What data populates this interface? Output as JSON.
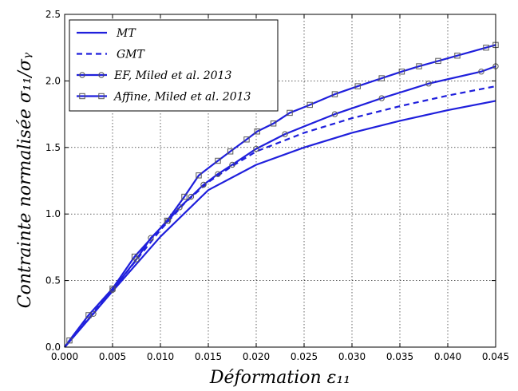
{
  "chart_data": {
    "type": "line",
    "xlabel": "Déformation ε₁₁",
    "ylabel": "Contrainte normalisée σ₁₁/σᵧ",
    "xlim": [
      0.0,
      0.045
    ],
    "ylim": [
      0.0,
      2.5
    ],
    "xticks": [
      0.0,
      0.005,
      0.01,
      0.015,
      0.02,
      0.025,
      0.03,
      0.035,
      0.04,
      0.045
    ],
    "xtick_labels": [
      "0.000",
      "0.005",
      "0.010",
      "0.015",
      "0.020",
      "0.025",
      "0.030",
      "0.035",
      "0.040",
      "0.045"
    ],
    "yticks": [
      0.0,
      0.5,
      1.0,
      1.5,
      2.0,
      2.5
    ],
    "ytick_labels": [
      "0.0",
      "0.5",
      "1.0",
      "1.5",
      "2.0",
      "2.5"
    ],
    "grid": true,
    "legend_position": "top-left",
    "series_color": "#1f1fdc",
    "series": [
      {
        "name": "MT",
        "style": "solid",
        "marker": "none",
        "x": [
          0.0,
          0.005,
          0.01,
          0.015,
          0.02,
          0.025,
          0.03,
          0.035,
          0.04,
          0.045
        ],
        "y": [
          0.0,
          0.42,
          0.83,
          1.18,
          1.37,
          1.5,
          1.61,
          1.7,
          1.78,
          1.85
        ]
      },
      {
        "name": "GMT",
        "style": "dashed",
        "marker": "none",
        "x": [
          0.0,
          0.005,
          0.01,
          0.0125,
          0.015,
          0.0175,
          0.02,
          0.025,
          0.03,
          0.035,
          0.04,
          0.045
        ],
        "y": [
          0.0,
          0.43,
          0.88,
          1.08,
          1.24,
          1.36,
          1.47,
          1.61,
          1.72,
          1.81,
          1.89,
          1.96
        ]
      },
      {
        "name": "EF, Miled et al. 2013",
        "style": "solid",
        "marker": "circle",
        "x": [
          0.0,
          0.003,
          0.005,
          0.0075,
          0.009,
          0.0108,
          0.012,
          0.0132,
          0.0145,
          0.016,
          0.0175,
          0.02,
          0.023,
          0.0282,
          0.0331,
          0.038,
          0.0435,
          0.045
        ],
        "y": [
          0.0,
          0.25,
          0.43,
          0.66,
          0.82,
          0.95,
          1.05,
          1.13,
          1.22,
          1.3,
          1.37,
          1.49,
          1.6,
          1.75,
          1.87,
          1.98,
          2.07,
          2.11
        ]
      },
      {
        "name": "Affine, Miled et al. 2013",
        "style": "solid",
        "marker": "square",
        "x": [
          0.0,
          0.0005,
          0.0025,
          0.005,
          0.0073,
          0.0107,
          0.0125,
          0.014,
          0.016,
          0.0173,
          0.019,
          0.0201,
          0.0218,
          0.0235,
          0.0256,
          0.0282,
          0.0306,
          0.0331,
          0.0352,
          0.037,
          0.039,
          0.041,
          0.044,
          0.045
        ],
        "y": [
          0.0,
          0.05,
          0.24,
          0.44,
          0.68,
          0.95,
          1.13,
          1.29,
          1.4,
          1.47,
          1.56,
          1.62,
          1.68,
          1.76,
          1.82,
          1.9,
          1.96,
          2.02,
          2.07,
          2.11,
          2.15,
          2.19,
          2.25,
          2.27
        ]
      }
    ]
  }
}
